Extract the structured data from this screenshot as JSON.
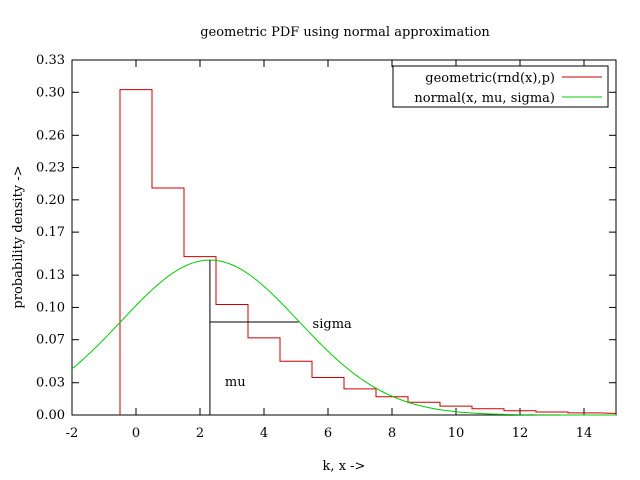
{
  "chart_data": {
    "type": "line",
    "title": "geometric PDF using normal approximation",
    "xlabel": "k, x ->",
    "ylabel": "probability density ->",
    "xlim": [
      -2,
      15
    ],
    "ylim": [
      0,
      0.33
    ],
    "x_ticks": [
      -2,
      0,
      2,
      4,
      6,
      8,
      10,
      12,
      14
    ],
    "y_ticks": [
      0.0,
      0.03,
      0.07,
      0.1,
      0.13,
      0.17,
      0.2,
      0.23,
      0.26,
      0.3,
      0.33
    ],
    "y_tick_labels": [
      "0.00",
      "0.03",
      "0.07",
      "0.10",
      "0.13",
      "0.17",
      "0.20",
      "0.23",
      "0.26",
      "0.30",
      "0.33"
    ],
    "grid": false,
    "legend_position": "top-right",
    "series": [
      {
        "name": "geometric(rnd(x),p)",
        "kind": "step",
        "color": "#cc0000",
        "points": [
          {
            "k": 0,
            "p": 0.3025
          },
          {
            "k": 1,
            "p": 0.211
          },
          {
            "k": 2,
            "p": 0.1472
          },
          {
            "k": 3,
            "p": 0.1027
          },
          {
            "k": 4,
            "p": 0.0717
          },
          {
            "k": 5,
            "p": 0.05
          },
          {
            "k": 6,
            "p": 0.0349
          },
          {
            "k": 7,
            "p": 0.0243
          },
          {
            "k": 8,
            "p": 0.017
          },
          {
            "k": 9,
            "p": 0.0118
          },
          {
            "k": 10,
            "p": 0.0083
          },
          {
            "k": 11,
            "p": 0.0058
          },
          {
            "k": 12,
            "p": 0.004
          },
          {
            "k": 13,
            "p": 0.0028
          },
          {
            "k": 14,
            "p": 0.002
          }
        ]
      },
      {
        "name": "normal(x, mu, sigma)",
        "kind": "curve",
        "color": "#00cc00",
        "mu": 2.31,
        "sigma": 2.77
      }
    ],
    "annotations": [
      {
        "text": "mu",
        "x": 2.31
      },
      {
        "text": "sigma",
        "x_start": 2.31,
        "x_end": 5.08,
        "y": 0.0865
      }
    ],
    "colors": {
      "axis": "#000000",
      "marker": "#000000"
    }
  }
}
